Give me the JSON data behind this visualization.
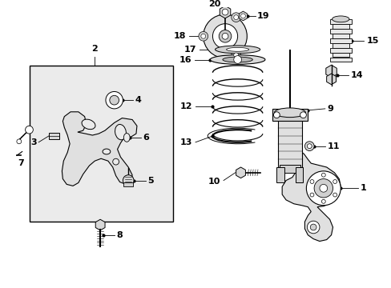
{
  "background_color": "#ffffff",
  "box_color": "#ebebeb",
  "box_border_color": "#000000",
  "line_color": "#000000",
  "text_color": "#000000",
  "figsize": [
    4.89,
    3.6
  ],
  "dpi": 100
}
